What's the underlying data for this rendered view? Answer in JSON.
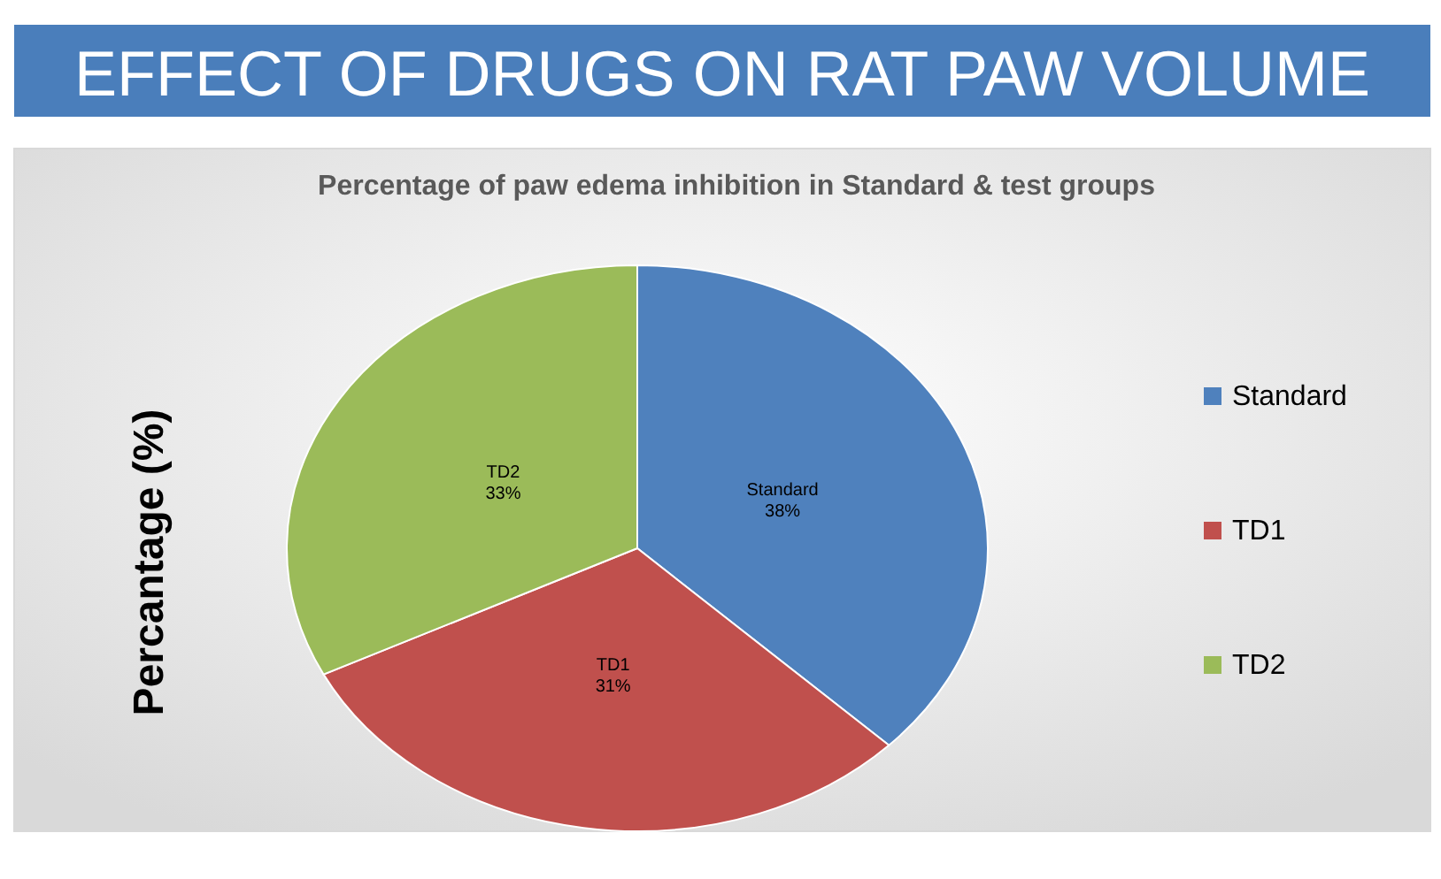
{
  "chart_data": {
    "type": "pie",
    "title": "EFFECT OF DRUGS ON RAT PAW VOLUME",
    "subtitle": "Percentage of paw edema inhibition in Standard & test groups",
    "ylabel": "Percantage (%)",
    "categories": [
      "Standard",
      "TD1",
      "TD2"
    ],
    "values": [
      38,
      31,
      33
    ],
    "colors": [
      "#4f81bd",
      "#c0504d",
      "#9bbb59"
    ],
    "value_labels": [
      "38%",
      "31%",
      "33%"
    ],
    "legend": "right"
  }
}
